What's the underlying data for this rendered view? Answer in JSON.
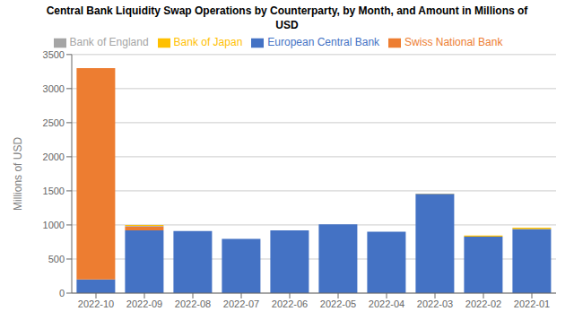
{
  "chart_data": {
    "type": "bar",
    "title": "Central Bank Liquidity Swap Operations by Counterparty, by Month, and Amount in Millions of\nUSD",
    "ylabel": "Millions of USD",
    "categories": [
      "2022-10",
      "2022-09",
      "2022-08",
      "2022-07",
      "2022-06",
      "2022-05",
      "2022-04",
      "2022-03",
      "2022-02",
      "2022-01"
    ],
    "series": [
      {
        "name": "European Central Bank",
        "color": "#4472C4",
        "values": [
          200,
          920,
          910,
          795,
          920,
          1010,
          900,
          1455,
          830,
          940
        ]
      },
      {
        "name": "Swiss National Bank",
        "color": "#ED7D31",
        "values": [
          3100,
          55,
          0,
          0,
          0,
          0,
          0,
          0,
          0,
          0
        ]
      },
      {
        "name": "Bank of England",
        "color": "#A5A5A5",
        "values": [
          0,
          10,
          0,
          0,
          0,
          0,
          0,
          0,
          0,
          0
        ]
      },
      {
        "name": "Bank of Japan",
        "color": "#FFC000",
        "values": [
          0,
          15,
          0,
          0,
          0,
          0,
          0,
          5,
          15,
          20
        ]
      }
    ],
    "stacked": true,
    "ylim": [
      0,
      3500
    ],
    "yticks": [
      0,
      500,
      1000,
      1500,
      2000,
      2500,
      3000,
      3500
    ],
    "grid": true,
    "legend": "top"
  }
}
